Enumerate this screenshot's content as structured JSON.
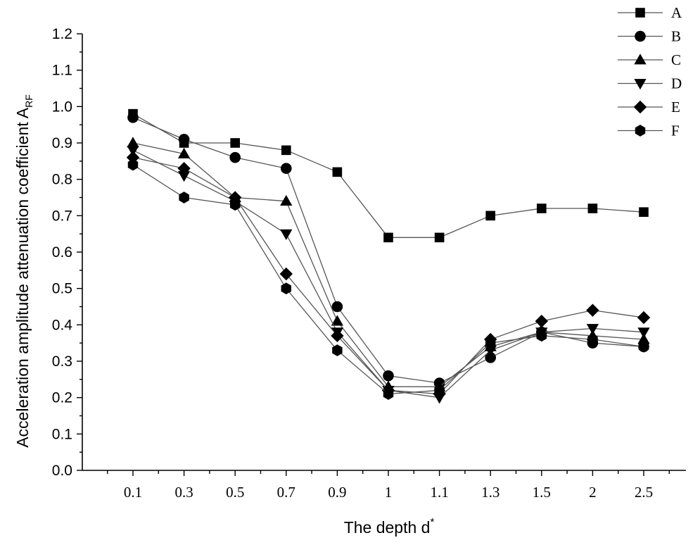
{
  "chart_data": {
    "type": "line",
    "title": "",
    "xlabel": "The depth d",
    "xlabel_superscript": "*",
    "ylabel": "Acceleration amplitude attenuation coefficient A",
    "ylabel_subscript": "RF",
    "categories": [
      "0.1",
      "0.3",
      "0.5",
      "0.7",
      "0.9",
      "1",
      "1.1",
      "1.3",
      "1.5",
      "2",
      "2.5"
    ],
    "yticks": [
      "0.0",
      "0.1",
      "0.2",
      "0.3",
      "0.4",
      "0.5",
      "0.6",
      "0.7",
      "0.8",
      "0.9",
      "1.0",
      "1.1",
      "1.2"
    ],
    "ylim": [
      0,
      1.2
    ],
    "grid": false,
    "legend_position": "top-right",
    "series": [
      {
        "name": "A",
        "marker": "square",
        "values": [
          0.98,
          0.9,
          0.9,
          0.88,
          0.82,
          0.64,
          0.64,
          0.7,
          0.72,
          0.72,
          0.71
        ]
      },
      {
        "name": "B",
        "marker": "circle",
        "values": [
          0.97,
          0.91,
          0.86,
          0.83,
          0.45,
          0.26,
          0.24,
          0.31,
          0.38,
          0.35,
          0.34
        ]
      },
      {
        "name": "C",
        "marker": "triangle-up",
        "values": [
          0.9,
          0.87,
          0.75,
          0.74,
          0.41,
          0.23,
          0.23,
          0.34,
          0.38,
          0.37,
          0.36
        ]
      },
      {
        "name": "D",
        "marker": "triangle-down",
        "values": [
          0.88,
          0.81,
          0.74,
          0.65,
          0.38,
          0.22,
          0.2,
          0.33,
          0.38,
          0.39,
          0.38
        ]
      },
      {
        "name": "E",
        "marker": "diamond",
        "values": [
          0.86,
          0.83,
          0.75,
          0.54,
          0.37,
          0.22,
          0.21,
          0.36,
          0.41,
          0.44,
          0.42
        ]
      },
      {
        "name": "F",
        "marker": "hexagon",
        "values": [
          0.84,
          0.75,
          0.73,
          0.5,
          0.33,
          0.21,
          0.22,
          0.35,
          0.37,
          0.36,
          0.34
        ]
      }
    ]
  }
}
